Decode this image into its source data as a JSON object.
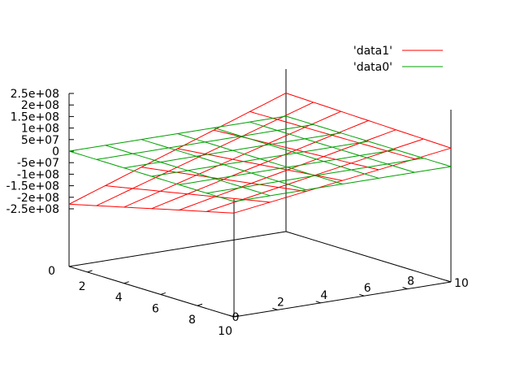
{
  "chart_data": {
    "type": "surface",
    "x_axis": {
      "range": [
        1,
        10
      ],
      "tick_labels": [
        "2",
        "4",
        "6",
        "8",
        "10"
      ]
    },
    "y_axis": {
      "range": [
        0,
        10
      ],
      "tick_labels": [
        "0",
        "2",
        "4",
        "6",
        "8",
        "10"
      ]
    },
    "z_axis": {
      "range": [
        -250000000,
        250000000
      ],
      "tick_values": [
        250000000,
        200000000,
        150000000,
        100000000,
        50000000,
        0,
        -50000000,
        -100000000,
        -150000000,
        -200000000,
        -250000000
      ],
      "tick_labels": [
        "2.5e+08",
        "2e+08",
        "1.5e+08",
        "1e+08",
        "5e+07",
        "0",
        "-5e+07",
        "-1e+08",
        "-1.5e+08",
        "-2e+08",
        "-2.5e+08"
      ],
      "base_label": "0"
    },
    "legend": {
      "placement": "top-right"
    },
    "series": [
      {
        "name": "'data1'",
        "color": "#ff0000",
        "corners": {
          "x1_y0": -230000000,
          "x1_y10": 100000000,
          "x10_y0": -50000000,
          "x10_y10": 80000000
        }
      },
      {
        "name": "'data0'",
        "color": "#00a000",
        "corners": {
          "x1_y0": 0,
          "x1_y10": 0,
          "x10_y0": 0,
          "x10_y10": 0
        }
      }
    ]
  }
}
